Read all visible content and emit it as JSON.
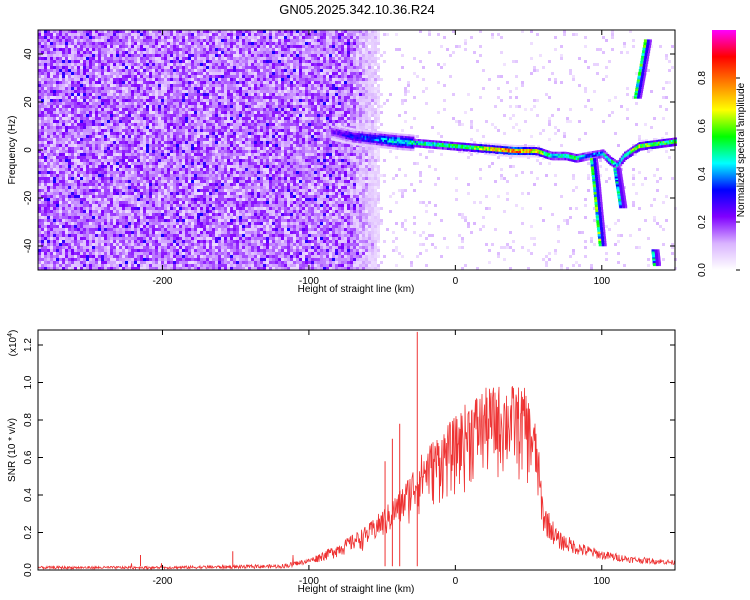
{
  "title": "GN05.2025.342.10.36.R24",
  "chart_data": [
    {
      "type": "heatmap",
      "xlabel": "Height of straight line (km)",
      "ylabel": "Frequency (Hz)",
      "xlim": [
        -285,
        150
      ],
      "ylim": [
        -50,
        50
      ],
      "xticks": [
        -200,
        -100,
        0,
        100
      ],
      "xtick_labels": [
        "-200",
        "-100",
        "0",
        "100"
      ],
      "yticks": [
        -40,
        -20,
        0,
        20,
        40
      ],
      "ytick_labels": [
        "-40",
        "-20",
        "0",
        "20",
        "40"
      ],
      "colorbar": {
        "label": "Normalized spectral amplitude",
        "range": [
          0.0,
          1.0
        ],
        "ticks": [
          0.0,
          0.2,
          0.4,
          0.6,
          0.8
        ],
        "tick_labels": [
          "0.0",
          "0.2",
          "0.4",
          "0.6",
          "0.8"
        ],
        "colormap": [
          "#ffffff",
          "#d9b3ff",
          "#8000ff",
          "#0000ff",
          "#00ffff",
          "#00ff00",
          "#ffff00",
          "#ff8000",
          "#ff0000",
          "#ff00ff"
        ]
      },
      "noise_region_x": [
        -285,
        -52
      ],
      "main_track": {
        "x": [
          -85,
          -70,
          -55,
          -40,
          -20,
          0,
          20,
          40,
          55,
          65,
          75,
          82,
          90,
          100,
          105,
          110,
          115,
          125,
          150
        ],
        "freq": [
          8,
          6,
          5,
          4,
          3,
          2,
          1,
          0,
          0,
          -2,
          -2,
          -3,
          -2,
          -1,
          -4,
          -6,
          -2,
          2,
          4
        ],
        "amplitude": [
          0.25,
          0.35,
          0.4,
          0.5,
          0.55,
          0.6,
          0.75,
          0.9,
          0.8,
          0.5,
          0.55,
          0.6,
          0.4,
          0.5,
          0.6,
          0.5,
          0.6,
          0.7,
          0.6
        ]
      },
      "branches": [
        {
          "x": [
            94,
            96,
            98,
            100
          ],
          "freq": [
            -4,
            -15,
            -28,
            -40
          ],
          "amplitude": 0.6
        },
        {
          "x": [
            110,
            112,
            114
          ],
          "freq": [
            -8,
            -16,
            -24
          ],
          "amplitude": 0.5
        },
        {
          "x": [
            124,
            127,
            131
          ],
          "freq": [
            22,
            32,
            46
          ],
          "amplitude": 0.6
        },
        {
          "x": [
            136,
            137
          ],
          "freq": [
            -42,
            -48
          ],
          "amplitude": 0.5
        }
      ]
    },
    {
      "type": "line",
      "xlabel": "Height of straight line (km)",
      "ylabel": "SNR (10 * v/v)",
      "yscale_note": "(x10",
      "yscale_exp": "4",
      "xlim": [
        -285,
        150
      ],
      "ylim": [
        0,
        1.28
      ],
      "xticks": [
        -200,
        -100,
        0,
        100
      ],
      "xtick_labels": [
        "-200",
        "-100",
        "0",
        "100"
      ],
      "yticks": [
        0.0,
        0.2,
        0.4,
        0.6,
        0.8,
        1.0,
        1.2
      ],
      "ytick_labels": [
        "0.0",
        "0.2",
        "0.4",
        "0.6",
        "0.8",
        "1.0",
        "1.2"
      ],
      "color": "#ee3333",
      "envelope": {
        "x": [
          -285,
          -200,
          -120,
          -100,
          -80,
          -60,
          -45,
          -35,
          -28,
          -20,
          -10,
          0,
          10,
          20,
          30,
          40,
          48,
          55,
          60,
          70,
          85,
          100,
          120,
          150
        ],
        "y": [
          0.02,
          0.02,
          0.03,
          0.06,
          0.14,
          0.24,
          0.36,
          0.46,
          0.56,
          0.66,
          0.74,
          0.82,
          0.92,
          0.97,
          0.99,
          0.99,
          0.97,
          0.78,
          0.36,
          0.2,
          0.14,
          0.1,
          0.07,
          0.05
        ]
      },
      "spikes": [
        {
          "x": -26,
          "y": 1.27
        },
        {
          "x": -38,
          "y": 0.78
        },
        {
          "x": -43,
          "y": 0.7
        },
        {
          "x": -48,
          "y": 0.58
        },
        {
          "x": -152,
          "y": 0.1
        },
        {
          "x": -215,
          "y": 0.08
        }
      ]
    }
  ]
}
